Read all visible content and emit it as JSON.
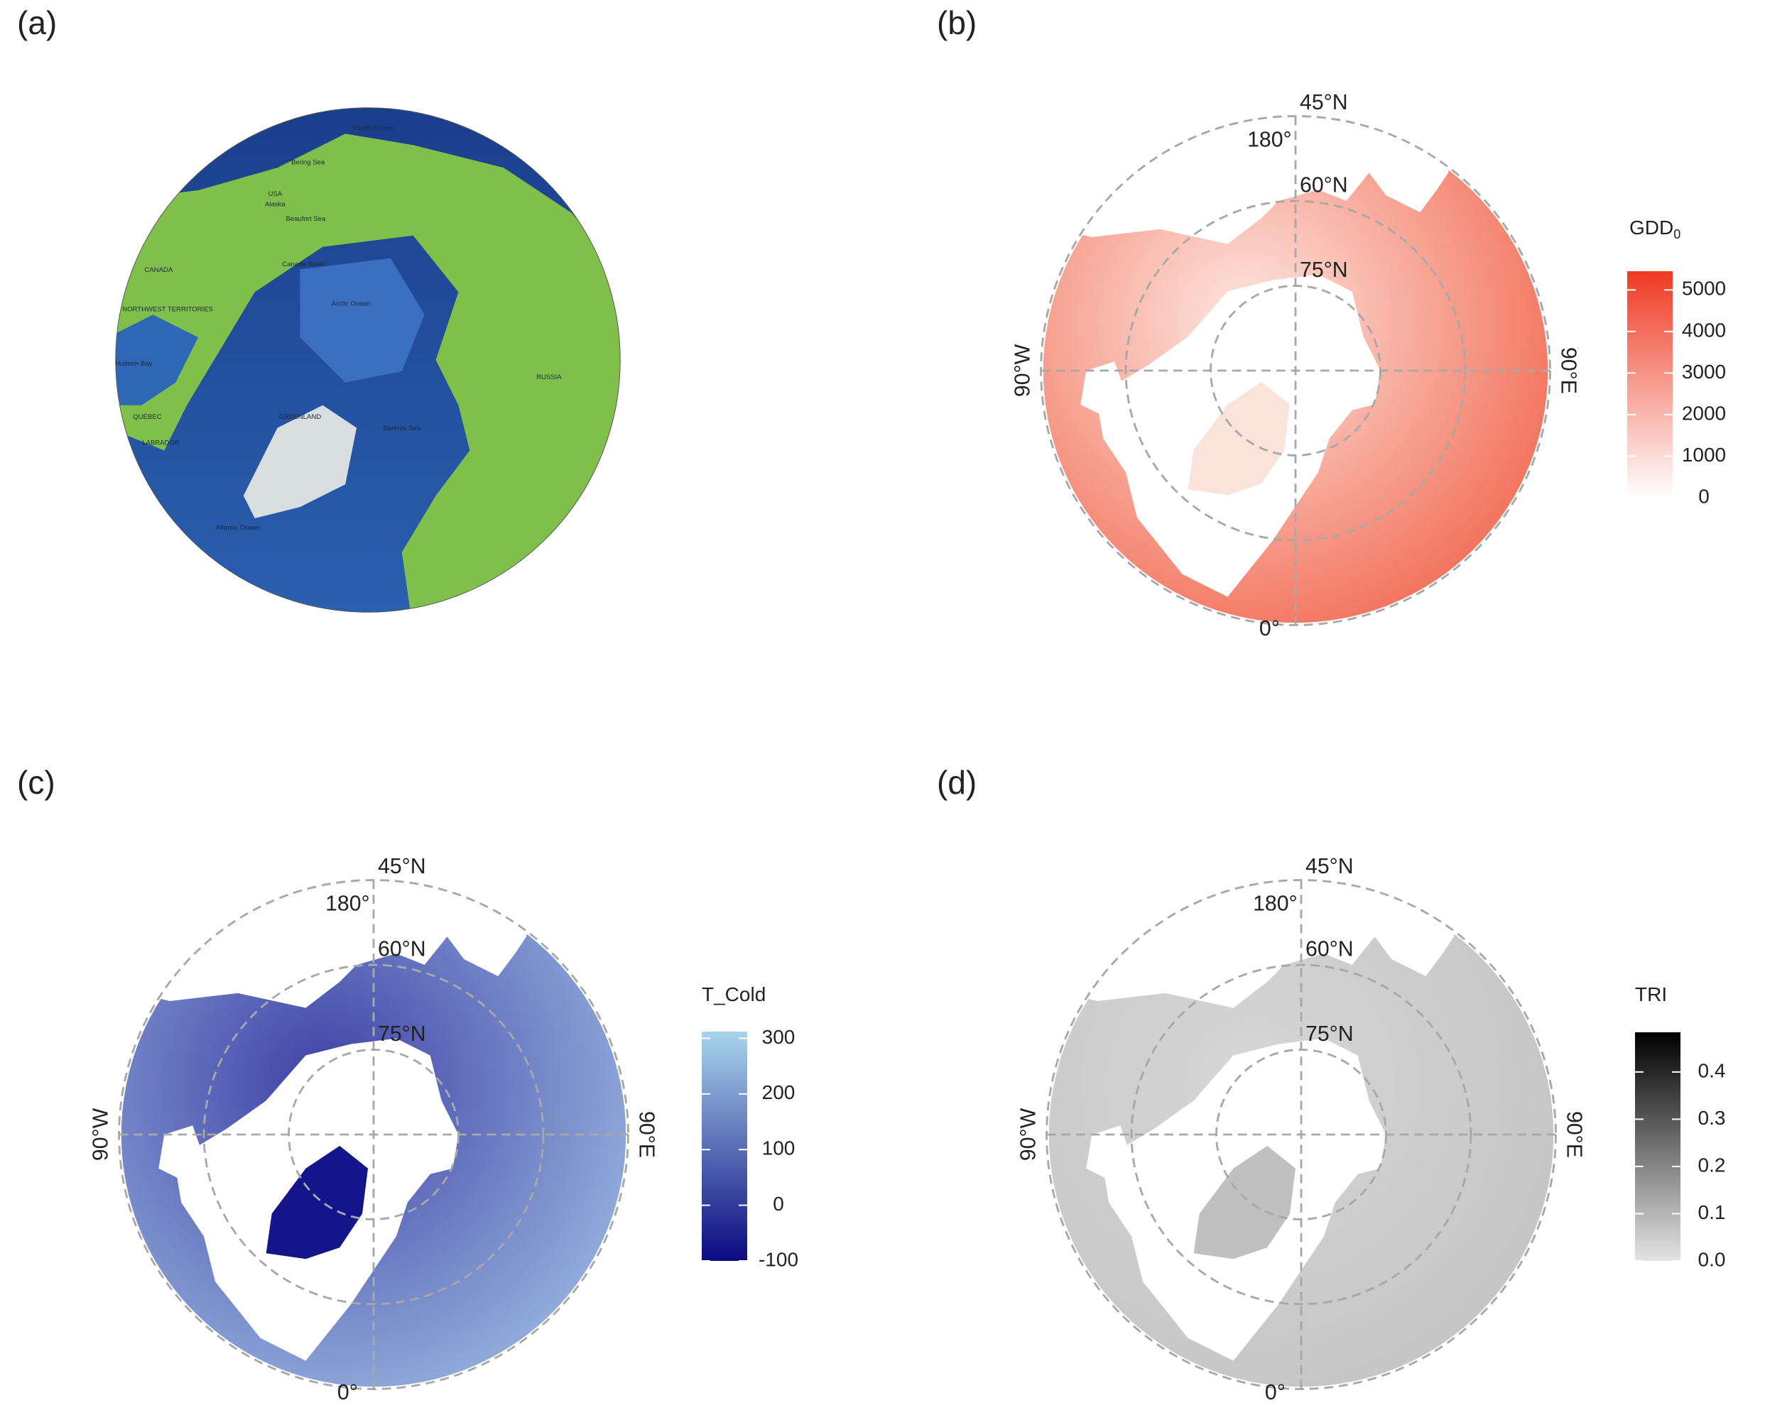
{
  "panels": [
    {
      "label": "(a)",
      "map_labels": [
        "Pacific Ocean",
        "Bering Sea",
        "USA",
        "Alaska",
        "CANADA",
        "NORTHWEST TERRITORIES",
        "Hudson Bay",
        "QUEBEC",
        "LABRADOR",
        "GREENLAND",
        "Arctic Ocean",
        "Canada Basin",
        "Beaufort Sea",
        "Atlantic Ocean",
        "Barents Sea",
        "RUSSIA"
      ]
    },
    {
      "label": "(b)",
      "graticule_labels": [
        "45°N",
        "180°",
        "60°N",
        "75°N",
        "90°W",
        "90°E",
        "0°"
      ],
      "legend": {
        "title": "GDD",
        "title_subscript": "0",
        "colors": [
          "#ffffff",
          "#f03a22"
        ],
        "range": [
          0,
          5450
        ],
        "ticks": [
          0,
          1000,
          2000,
          3000,
          4000,
          5000
        ]
      }
    },
    {
      "label": "(c)",
      "graticule_labels": [
        "45°N",
        "180°",
        "60°N",
        "75°N",
        "90°W",
        "90°E",
        "0°"
      ],
      "legend": {
        "title": "T_Cold",
        "colors": [
          "#0a0a80",
          "#a9d4ec"
        ],
        "range": [
          -100,
          312
        ],
        "ticks": [
          -100,
          0,
          100,
          200,
          300
        ]
      }
    },
    {
      "label": "(d)",
      "graticule_labels": [
        "45°N",
        "180°",
        "60°N",
        "75°N",
        "90°W",
        "90°E",
        "0°"
      ],
      "legend": {
        "title": "TRI",
        "colors": [
          "#e4e4e4",
          "#000000"
        ],
        "range": [
          0,
          0.484
        ],
        "ticks": [
          {
            "value": 0,
            "label": "0.0"
          },
          0.1,
          0.2,
          0.3,
          0.4
        ]
      }
    }
  ]
}
